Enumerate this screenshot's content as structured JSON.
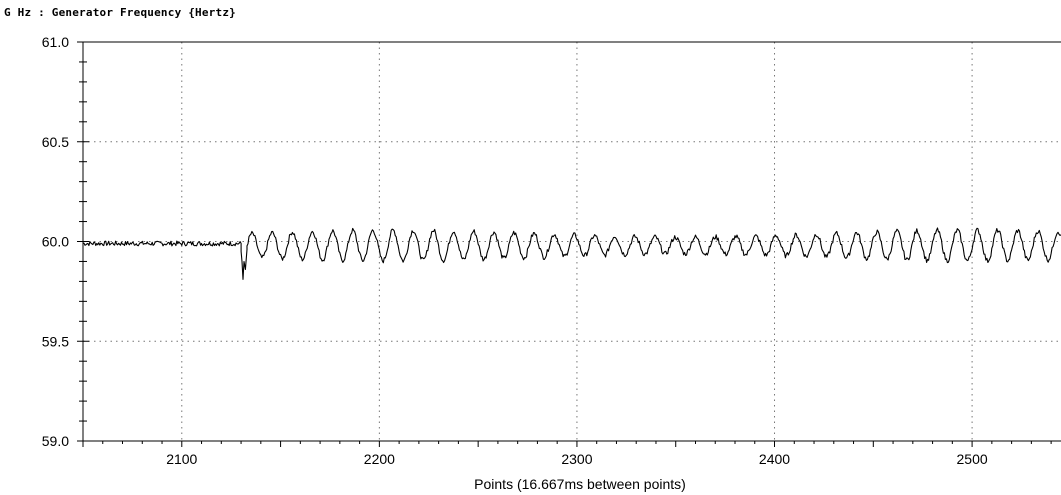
{
  "chart_data": {
    "type": "line",
    "title": "G Hz : Generator Frequency {Hertz}",
    "xlabel": "Points (16.667ms between points)",
    "ylabel": "",
    "xlim": [
      2050,
      2545
    ],
    "ylim": [
      59.0,
      61.0
    ],
    "x_ticks": [
      2100,
      2200,
      2300,
      2400,
      2500
    ],
    "x_tick_labels": [
      "2100",
      "2200",
      "2300",
      "2400",
      "2500"
    ],
    "y_ticks": [
      59.0,
      59.5,
      60.0,
      60.5,
      61.0
    ],
    "y_tick_labels": [
      "59.0",
      "59.5",
      "60.0",
      "60.5",
      "61.0"
    ],
    "grid": "dotted",
    "series": [
      {
        "color": "#000000",
        "segments": [
          {
            "type": "flat",
            "x_start": 2050,
            "x_end": 2130,
            "center": 59.99,
            "noise": 0.012
          },
          {
            "type": "dip",
            "x": 2131,
            "y": 59.81
          },
          {
            "type": "oscillation",
            "x_start": 2133,
            "x_end": 2545,
            "center": 59.98,
            "amplitude": 0.07,
            "period": 10.2
          }
        ]
      }
    ]
  }
}
